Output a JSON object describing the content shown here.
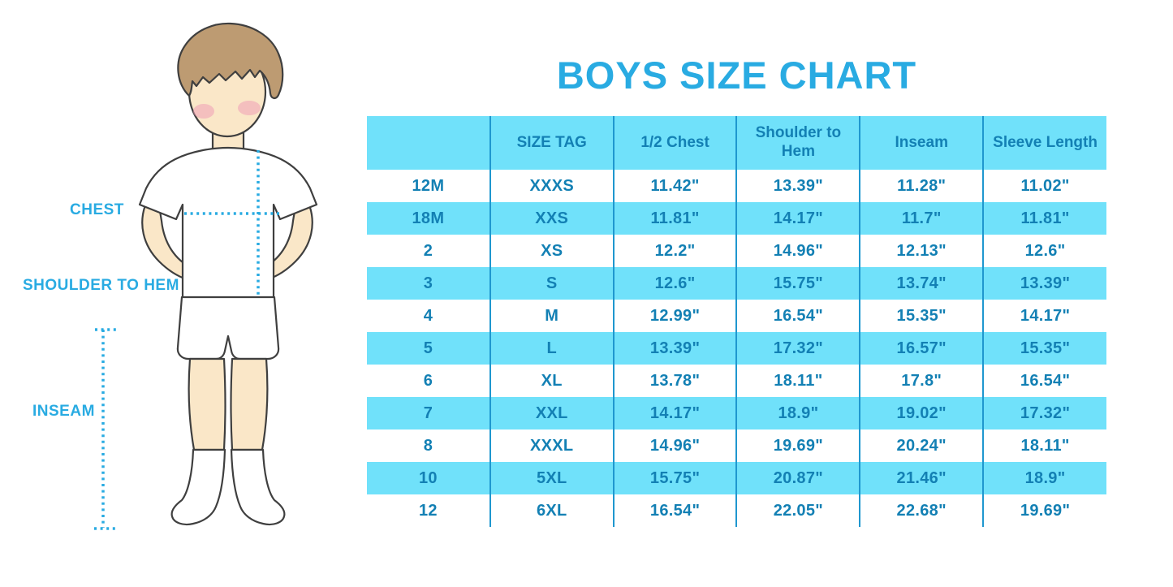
{
  "title": "BOYS SIZE CHART",
  "diagram": {
    "illustration": "boy wearing white t-shirt, shorts and knee socks with dotted measurement guides",
    "labels": {
      "chest": "CHEST",
      "shoulder_to_hem": "SHOULDER TO HEM",
      "inseam": "INSEAM"
    }
  },
  "colors": {
    "accent_blue": "#29ABE2",
    "table_text": "#1380B4",
    "cell_cyan": "#70E1FA",
    "divider": "#1F97CF"
  },
  "chart_data": {
    "type": "table",
    "title": "BOYS SIZE CHART",
    "columns": [
      "",
      "SIZE TAG",
      "1/2 Chest",
      "Shoulder to Hem",
      "Inseam",
      "Sleeve Length"
    ],
    "rows": [
      [
        "12M",
        "XXXS",
        "11.42\"",
        "13.39\"",
        "11.28\"",
        "11.02\""
      ],
      [
        "18M",
        "XXS",
        "11.81\"",
        "14.17\"",
        "11.7\"",
        "11.81\""
      ],
      [
        "2",
        "XS",
        "12.2\"",
        "14.96\"",
        "12.13\"",
        "12.6\""
      ],
      [
        "3",
        "S",
        "12.6\"",
        "15.75\"",
        "13.74\"",
        "13.39\""
      ],
      [
        "4",
        "M",
        "12.99\"",
        "16.54\"",
        "15.35\"",
        "14.17\""
      ],
      [
        "5",
        "L",
        "13.39\"",
        "17.32\"",
        "16.57\"",
        "15.35\""
      ],
      [
        "6",
        "XL",
        "13.78\"",
        "18.11\"",
        "17.8\"",
        "16.54\""
      ],
      [
        "7",
        "XXL",
        "14.17\"",
        "18.9\"",
        "19.02\"",
        "17.32\""
      ],
      [
        "8",
        "XXXL",
        "14.96\"",
        "19.69\"",
        "20.24\"",
        "18.11\""
      ],
      [
        "10",
        "5XL",
        "15.75\"",
        "20.87\"",
        "21.46\"",
        "18.9\""
      ],
      [
        "12",
        "6XL",
        "16.54\"",
        "22.05\"",
        "22.68\"",
        "19.69\""
      ]
    ]
  }
}
